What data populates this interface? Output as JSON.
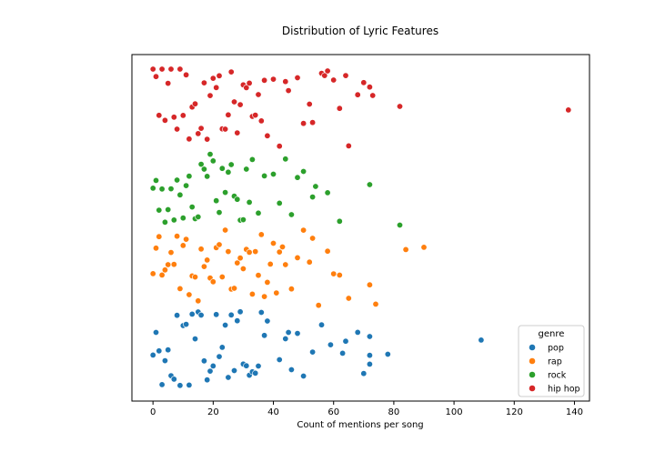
{
  "chart_data": {
    "type": "scatter",
    "title": "Distribution of Lyric Features",
    "xlabel": "Count of mentions per song",
    "ylabel": "",
    "xlim": [
      -7,
      145
    ],
    "x_ticks": [
      0,
      20,
      40,
      60,
      80,
      100,
      120,
      140
    ],
    "grid": false,
    "legend": {
      "title": "genre",
      "placement": "bottom-right"
    },
    "series": [
      {
        "name": "pop",
        "color": "#1f77b4",
        "band": 0,
        "x": [
          0,
          1,
          2,
          3,
          4,
          5,
          6,
          7,
          8,
          9,
          10,
          11,
          12,
          13,
          14,
          15,
          16,
          17,
          18,
          19,
          20,
          21,
          22,
          23,
          24,
          25,
          26,
          27,
          28,
          29,
          30,
          31,
          32,
          33,
          34,
          35,
          36,
          37,
          38,
          42,
          44,
          45,
          46,
          48,
          50,
          53,
          56,
          59,
          63,
          64,
          68,
          70,
          72,
          72,
          72,
          78,
          109
        ]
      },
      {
        "name": "rap",
        "color": "#ff7f0e",
        "band": 1,
        "x": [
          0,
          1,
          2,
          3,
          4,
          5,
          6,
          7,
          8,
          9,
          10,
          11,
          12,
          13,
          14,
          15,
          16,
          17,
          18,
          19,
          20,
          21,
          22,
          23,
          24,
          25,
          26,
          27,
          28,
          29,
          30,
          31,
          32,
          33,
          34,
          35,
          36,
          37,
          38,
          39,
          40,
          41,
          42,
          43,
          44,
          46,
          48,
          50,
          52,
          53,
          55,
          58,
          60,
          62,
          65,
          72,
          74,
          84,
          90
        ]
      },
      {
        "name": "rock",
        "color": "#2ca02c",
        "band": 2,
        "x": [
          0,
          1,
          2,
          3,
          4,
          5,
          6,
          7,
          8,
          9,
          10,
          11,
          12,
          13,
          14,
          15,
          16,
          17,
          18,
          19,
          20,
          21,
          22,
          23,
          24,
          25,
          26,
          27,
          28,
          29,
          30,
          31,
          32,
          33,
          35,
          37,
          40,
          42,
          44,
          46,
          48,
          50,
          53,
          54,
          58,
          62,
          72,
          82
        ]
      },
      {
        "name": "hip hop",
        "color": "#d62728",
        "band": 3,
        "x": [
          0,
          1,
          2,
          3,
          4,
          5,
          6,
          7,
          8,
          9,
          10,
          11,
          12,
          13,
          14,
          15,
          16,
          17,
          18,
          19,
          20,
          21,
          22,
          23,
          24,
          25,
          26,
          27,
          28,
          29,
          30,
          31,
          32,
          33,
          34,
          35,
          36,
          37,
          38,
          40,
          42,
          44,
          45,
          48,
          50,
          52,
          53,
          56,
          57,
          58,
          60,
          62,
          64,
          65,
          68,
          70,
          72,
          73,
          82,
          138
        ]
      }
    ]
  }
}
